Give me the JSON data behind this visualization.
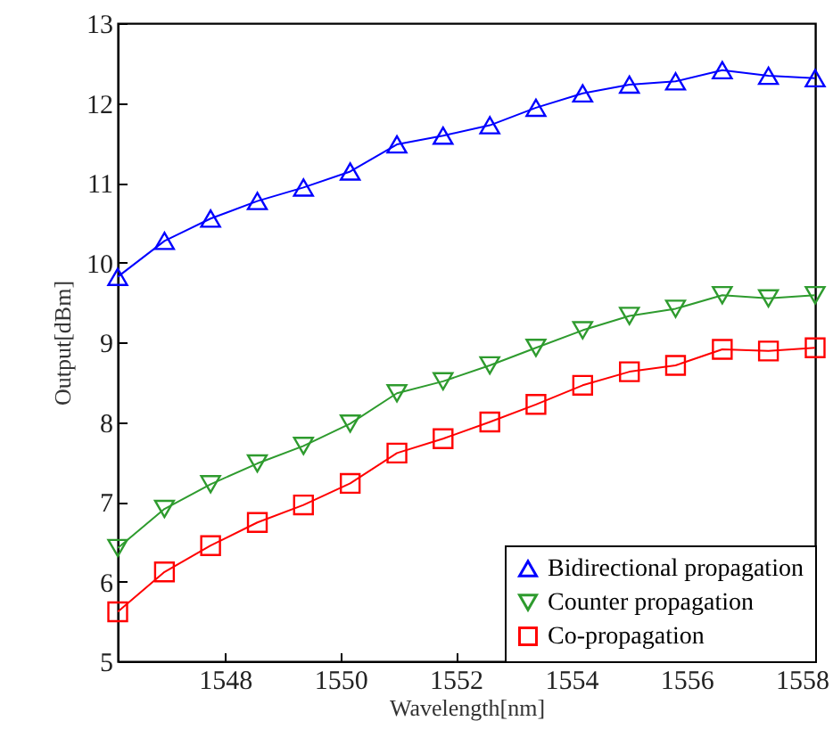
{
  "chart_data": {
    "type": "line",
    "xlabel": "Wavelength[nm]",
    "ylabel": "Output[dBm]",
    "x": [
      1546.14,
      1546.95,
      1547.75,
      1548.56,
      1549.36,
      1550.17,
      1550.98,
      1551.78,
      1552.59,
      1553.39,
      1554.2,
      1555.01,
      1555.81,
      1556.62,
      1557.42,
      1558.23
    ],
    "series": [
      {
        "name": "Bidirectional propagation",
        "color": "#0000ff",
        "marker": "triangle",
        "values": [
          9.82,
          10.27,
          10.55,
          10.77,
          10.94,
          11.14,
          11.48,
          11.59,
          11.72,
          11.94,
          12.12,
          12.23,
          12.27,
          12.41,
          12.34,
          12.31
        ]
      },
      {
        "name": "Counter propagation",
        "color": "#2e9b2e",
        "marker": "triangle-down",
        "values": [
          6.42,
          6.91,
          7.22,
          7.48,
          7.7,
          7.98,
          8.36,
          8.51,
          8.71,
          8.93,
          9.15,
          9.33,
          9.42,
          9.59,
          9.55,
          9.59
        ]
      },
      {
        "name": "Co-propagation",
        "color": "#ff0000",
        "marker": "square",
        "values": [
          5.62,
          6.12,
          6.45,
          6.74,
          6.96,
          7.23,
          7.61,
          7.79,
          8.0,
          8.22,
          8.46,
          8.63,
          8.71,
          8.91,
          8.89,
          8.93
        ]
      }
    ],
    "xlim": [
      1546.14,
      1558.23
    ],
    "xticks": [
      1548,
      1550,
      1552,
      1554,
      1556,
      1558
    ],
    "ylim": [
      5,
      13
    ],
    "yticks": [
      5,
      6,
      7,
      8,
      9,
      10,
      11,
      12,
      13
    ],
    "grid": false,
    "legend": "bottom right",
    "line_style": "solid"
  }
}
